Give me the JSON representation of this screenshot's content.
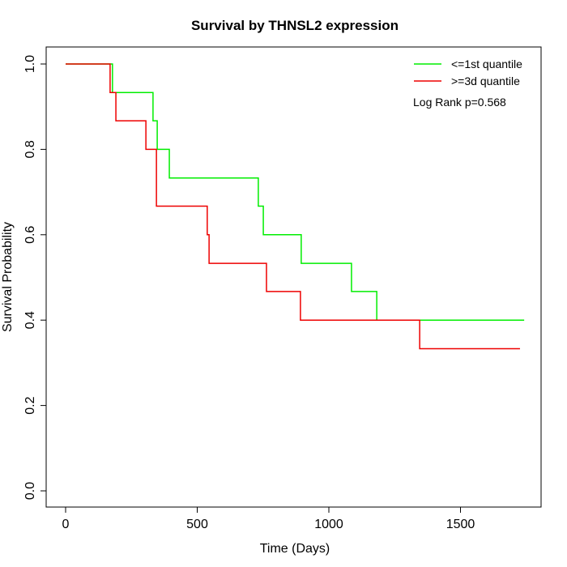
{
  "chart_data": {
    "type": "line",
    "subtype": "kaplan-meier step",
    "title": "Survival by THNSL2 expression",
    "xlabel": "Time (Days)",
    "ylabel": "Survival Probability",
    "xlim": [
      0,
      1750
    ],
    "ylim": [
      0,
      1
    ],
    "xticks": [
      0,
      500,
      1000,
      1500
    ],
    "xtick_labels": [
      "0",
      "500",
      "1000",
      "1500"
    ],
    "yticks": [
      0,
      0.2,
      0.4,
      0.6,
      0.8,
      1.0
    ],
    "ytick_labels": [
      "0.0",
      "0.2",
      "0.4",
      "0.6",
      "0.8",
      "1.0"
    ],
    "grid": false,
    "legend_position": "top-right",
    "annotation": "Log Rank p=0.568",
    "series": [
      {
        "name": "<=1st quantile",
        "color": "#00ee00",
        "times": [
          0,
          178,
          332,
          348,
          394,
          732,
          751,
          895,
          1086,
          1182,
          1742
        ],
        "survival": [
          1.0,
          0.933,
          0.867,
          0.8,
          0.733,
          0.667,
          0.6,
          0.533,
          0.467,
          0.4,
          0.4
        ]
      },
      {
        "name": ">=3d quantile",
        "color": "#ee0000",
        "times": [
          0,
          169,
          191,
          305,
          345,
          538,
          545,
          763,
          892,
          1345,
          1726
        ],
        "survival": [
          1.0,
          0.933,
          0.867,
          0.8,
          0.667,
          0.6,
          0.533,
          0.467,
          0.4,
          0.333,
          0.333
        ]
      }
    ]
  }
}
